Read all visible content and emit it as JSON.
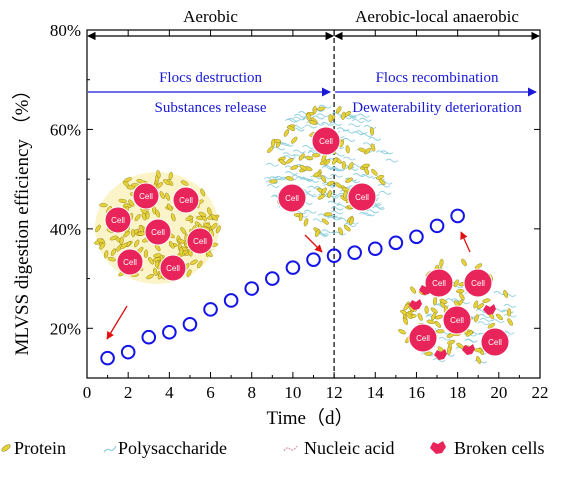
{
  "chart_data": {
    "type": "scatter",
    "xlabel": "Time（d）",
    "ylabel": "MLVSS digestion efficiency （%）",
    "xlim": [
      0,
      22
    ],
    "ylim": [
      10,
      80
    ],
    "xticks": [
      0,
      2,
      4,
      6,
      8,
      10,
      12,
      14,
      16,
      18,
      20,
      22
    ],
    "yticks": [
      20,
      40,
      60,
      80
    ],
    "ytick_labels": [
      "20%",
      "40%",
      "60%",
      "80%"
    ],
    "grid": false,
    "marker": "open-circle",
    "marker_color": "#1414e6",
    "x": [
      1,
      2,
      3,
      4,
      5,
      6,
      7,
      8,
      9,
      10,
      11,
      12,
      13,
      14,
      15,
      16,
      17,
      18
    ],
    "y": [
      14,
      15.2,
      18.2,
      19.2,
      20.8,
      23.8,
      25.6,
      28.0,
      30.0,
      32.2,
      33.8,
      34.6,
      35.2,
      36.0,
      37.2,
      38.4,
      40.6,
      42.6
    ],
    "divider_x": 12,
    "phases": [
      {
        "label": "Aerobic",
        "x_start": 0,
        "x_end": 12
      },
      {
        "label": "Aerobic-local anaerobic",
        "x_start": 12,
        "x_end": 22
      }
    ],
    "processes": [
      {
        "lines": [
          "Flocs destruction",
          "Substances release"
        ],
        "x_start": 0,
        "x_end": 12
      },
      {
        "lines": [
          "Flocs recombination",
          "Dewaterability deterioration"
        ],
        "x_start": 12,
        "x_end": 22
      }
    ],
    "process_color": "#1a1ad6",
    "cell_label": "Cell",
    "legend": [
      {
        "label": "Protein",
        "symbol": "protein"
      },
      {
        "label": "Polysaccharide",
        "symbol": "polysaccharide"
      },
      {
        "label": "Nucleic acid",
        "symbol": "nucleic-acid"
      },
      {
        "label": "Broken cells",
        "symbol": "broken-cell"
      }
    ],
    "colors": {
      "cell": "#e8245a",
      "protein": "#e6d23c",
      "polysaccharide": "#8fd0de",
      "nucleic_acid": "#d79bb4",
      "arrow": "#e01010"
    }
  }
}
